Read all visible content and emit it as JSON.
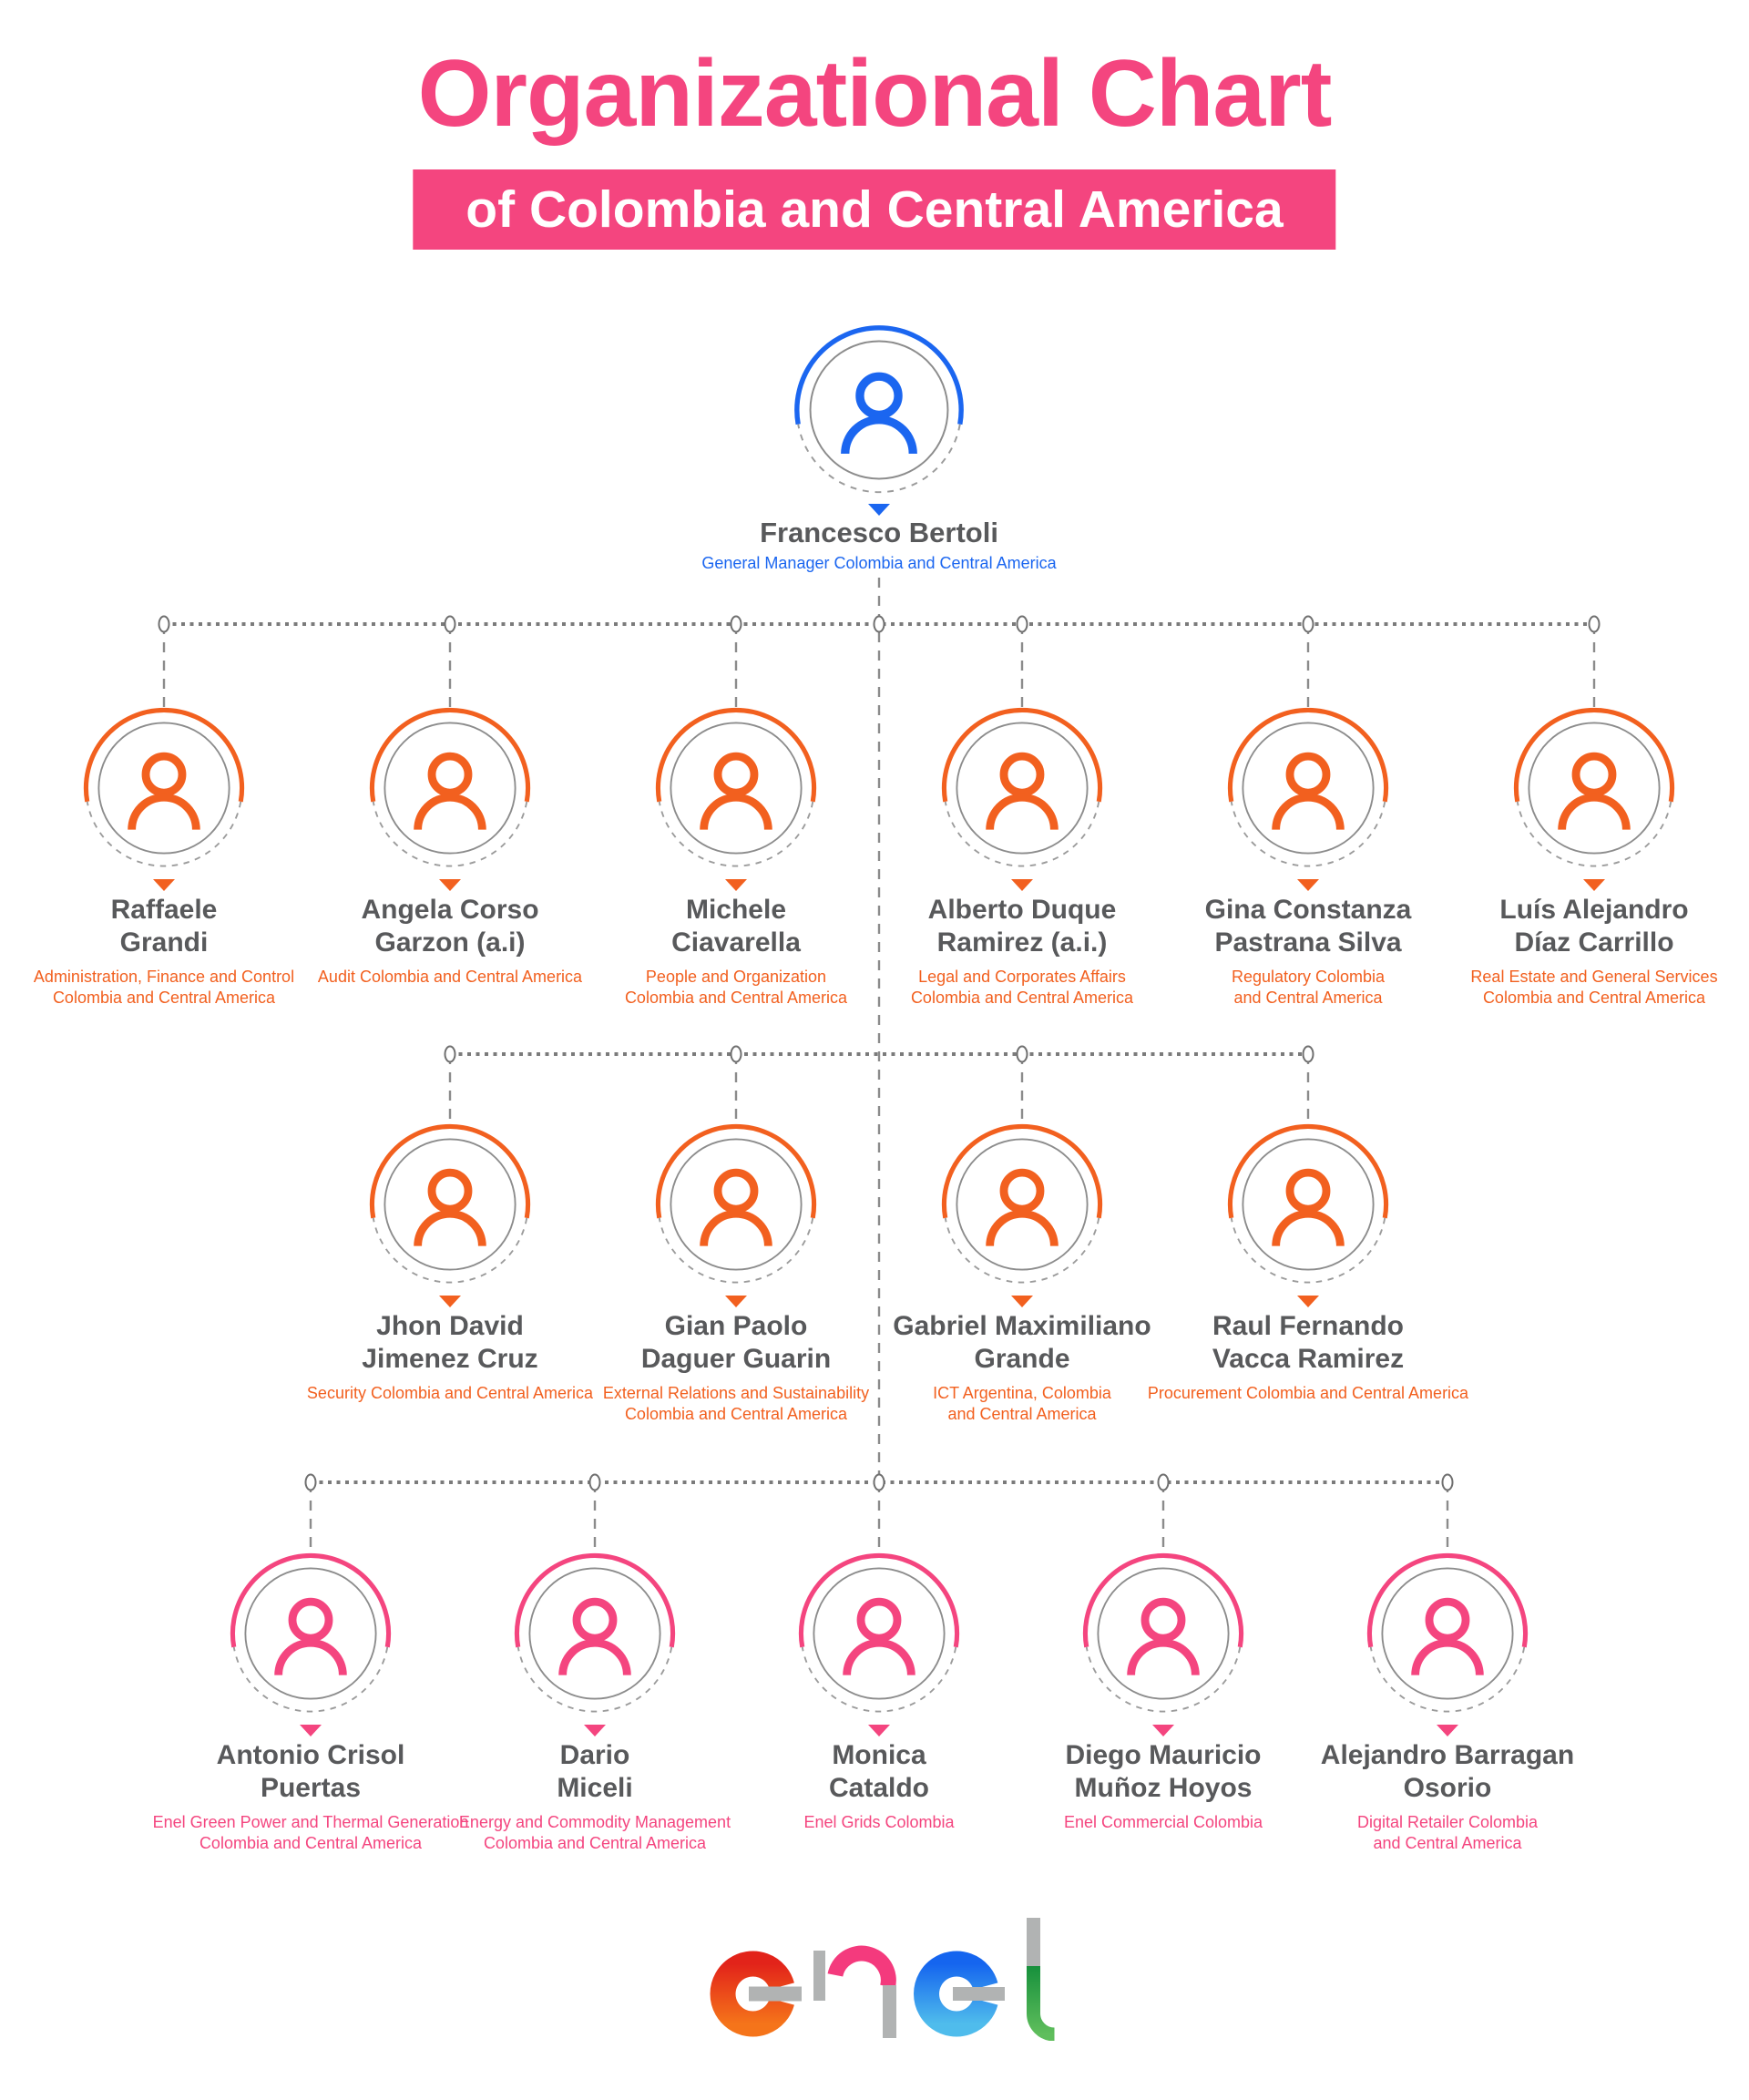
{
  "header": {
    "title": "Organizational Chart",
    "subtitle": "of Colombia and Central America"
  },
  "colors": {
    "pink": "#F4457F",
    "orange": "#F2601F",
    "blue": "#1B66F0",
    "name_gray": "#58595B",
    "line_gray": "#7B7B7B",
    "ring_gray": "#8C8C8C"
  },
  "root": {
    "name": "Francesco Bertoli",
    "role": "General Manager Colombia and Central America",
    "accent": "blue"
  },
  "rows": [
    {
      "accent": "orange",
      "members": [
        {
          "name": "Raffaele\nGrandi",
          "role": "Administration, Finance and Control\nColombia and Central America"
        },
        {
          "name": "Angela Corso\nGarzon (a.i)",
          "role": "Audit Colombia and Central America"
        },
        {
          "name": "Michele\nCiavarella",
          "role": "People and Organization\nColombia and Central America"
        },
        {
          "name": "Alberto Duque\nRamirez (a.i.)",
          "role": "Legal and Corporates Affairs\nColombia and Central America"
        },
        {
          "name": "Gina Constanza\nPastrana Silva",
          "role": "Regulatory Colombia\nand Central America"
        },
        {
          "name": "Luís Alejandro\nDíaz Carrillo",
          "role": "Real Estate and General Services\nColombia and Central America"
        }
      ]
    },
    {
      "accent": "orange",
      "members": [
        {
          "name": "Jhon David\nJimenez Cruz",
          "role": "Security Colombia and Central America"
        },
        {
          "name": "Gian Paolo\nDaguer Guarin",
          "role": "External Relations and Sustainability\nColombia and Central America"
        },
        {
          "name": "Gabriel Maximiliano\nGrande",
          "role": "ICT Argentina, Colombia\nand Central America"
        },
        {
          "name": "Raul Fernando\nVacca Ramirez",
          "role": "Procurement Colombia and Central America"
        }
      ]
    },
    {
      "accent": "pink",
      "members": [
        {
          "name": "Antonio Crisol\nPuertas",
          "role": "Enel Green Power and Thermal Generation\nColombia and Central America"
        },
        {
          "name": "Dario\nMiceli",
          "role": "Energy and Commodity Management\nColombia and Central America"
        },
        {
          "name": "Monica\nCataldo",
          "role": "Enel Grids Colombia"
        },
        {
          "name": "Diego Mauricio\nMuñoz Hoyos",
          "role": "Enel Commercial Colombia"
        },
        {
          "name": "Alejandro Barragan\nOsorio",
          "role": "Digital Retailer Colombia\nand Central America"
        }
      ]
    }
  ],
  "logo": {
    "alt": "enel",
    "colors": {
      "gray": "#B1B3B3",
      "e1_top": "#E2231A",
      "e1_bottom": "#F5741A",
      "n_pink": "#F43A7D",
      "e2_top": "#1565EF",
      "e2_bottom": "#4FBCEC",
      "l_green_top": "#17903C",
      "l_green_bottom": "#5FBE5C"
    }
  }
}
